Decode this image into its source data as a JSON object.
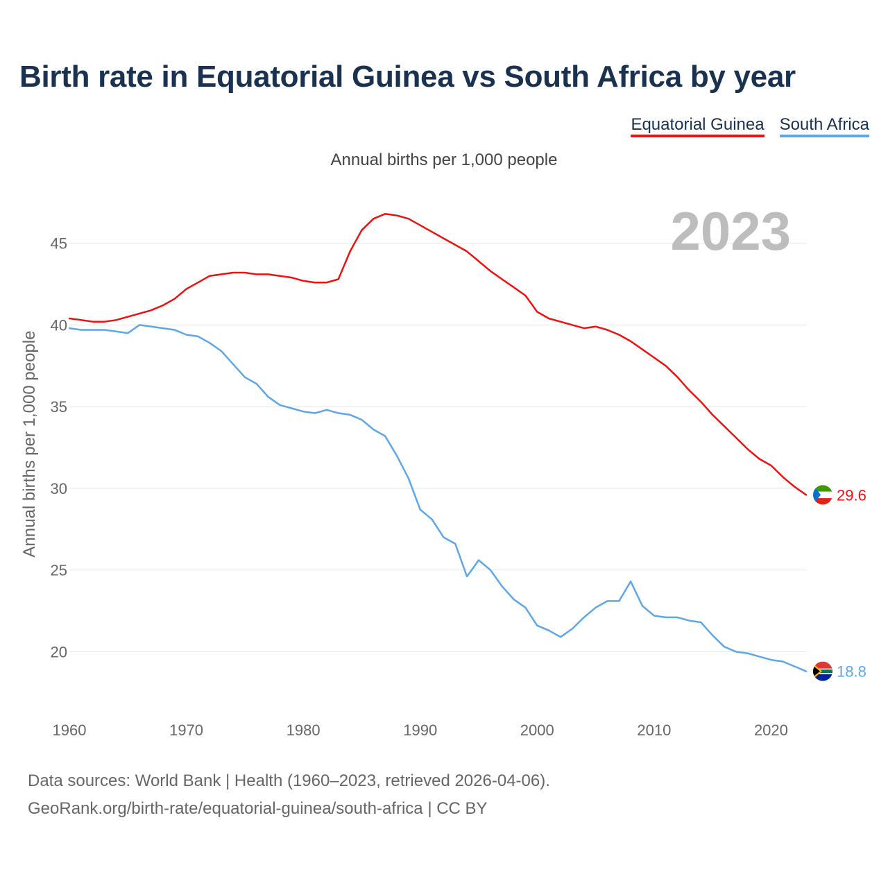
{
  "title": "Birth rate in Equatorial Guinea vs South Africa by year",
  "legend": {
    "eg": "Equatorial Guinea",
    "za": "South Africa"
  },
  "subtitle": "Annual births per 1,000 people",
  "footer": {
    "line1": "Data sources: World Bank | Health (1960–2023, retrieved 2026-04-06).",
    "line2": "GeoRank.org/birth-rate/equatorial-guinea/south-africa | CC BY"
  },
  "colors": {
    "eg": "#ee1111",
    "za": "#5ea7e6",
    "title": "#1a3150",
    "grid": "#e6e6e6",
    "year_watermark": "#bdbdbd"
  },
  "chart_data": {
    "type": "line",
    "title": "Birth rate in Equatorial Guinea vs South Africa by year",
    "xlabel": "",
    "ylabel": "Annual births per 1,000 people",
    "xlim": [
      1960,
      2023
    ],
    "ylim": [
      17,
      48
    ],
    "y_ticks": [
      20,
      25,
      30,
      35,
      40,
      45
    ],
    "x_ticks": [
      1960,
      1970,
      1980,
      1990,
      2000,
      2010,
      2020
    ],
    "year_label": "2023",
    "grid": true,
    "legend_position": "top-right",
    "x": [
      1960,
      1961,
      1962,
      1963,
      1964,
      1965,
      1966,
      1967,
      1968,
      1969,
      1970,
      1971,
      1972,
      1973,
      1974,
      1975,
      1976,
      1977,
      1978,
      1979,
      1980,
      1981,
      1982,
      1983,
      1984,
      1985,
      1986,
      1987,
      1988,
      1989,
      1990,
      1991,
      1992,
      1993,
      1994,
      1995,
      1996,
      1997,
      1998,
      1999,
      2000,
      2001,
      2002,
      2003,
      2004,
      2005,
      2006,
      2007,
      2008,
      2009,
      2010,
      2011,
      2012,
      2013,
      2014,
      2015,
      2016,
      2017,
      2018,
      2019,
      2020,
      2021,
      2022,
      2023
    ],
    "series": [
      {
        "name": "Equatorial Guinea",
        "color": "#ee1111",
        "end_label": "29.6",
        "values": [
          40.4,
          40.3,
          40.2,
          40.2,
          40.3,
          40.5,
          40.7,
          40.9,
          41.2,
          41.6,
          42.2,
          42.6,
          43.0,
          43.1,
          43.2,
          43.2,
          43.1,
          43.1,
          43.0,
          42.9,
          42.7,
          42.6,
          42.6,
          42.8,
          44.5,
          45.8,
          46.5,
          46.8,
          46.7,
          46.5,
          46.1,
          45.7,
          45.3,
          44.9,
          44.5,
          43.9,
          43.3,
          42.8,
          42.3,
          41.8,
          40.8,
          40.4,
          40.2,
          40.0,
          39.8,
          39.9,
          39.7,
          39.4,
          39.0,
          38.5,
          38.0,
          37.5,
          36.8,
          36.0,
          35.3,
          34.5,
          33.8,
          33.1,
          32.4,
          31.8,
          31.4,
          30.7,
          30.1,
          29.6
        ]
      },
      {
        "name": "South Africa",
        "color": "#5ea7e6",
        "end_label": "18.8",
        "values": [
          39.8,
          39.7,
          39.7,
          39.7,
          39.6,
          39.5,
          40.0,
          39.9,
          39.8,
          39.7,
          39.4,
          39.3,
          38.9,
          38.4,
          37.6,
          36.8,
          36.4,
          35.6,
          35.1,
          34.9,
          34.7,
          34.6,
          34.8,
          34.6,
          34.5,
          34.2,
          33.6,
          33.2,
          32.0,
          30.6,
          28.7,
          28.1,
          27.0,
          26.6,
          24.6,
          25.6,
          25.0,
          24.0,
          23.2,
          22.7,
          21.6,
          21.3,
          20.9,
          21.4,
          22.1,
          22.7,
          23.1,
          23.1,
          24.3,
          22.8,
          22.2,
          22.1,
          22.1,
          21.9,
          21.8,
          21.0,
          20.3,
          20.0,
          19.9,
          19.7,
          19.5,
          19.4,
          19.1,
          18.8
        ]
      }
    ]
  }
}
